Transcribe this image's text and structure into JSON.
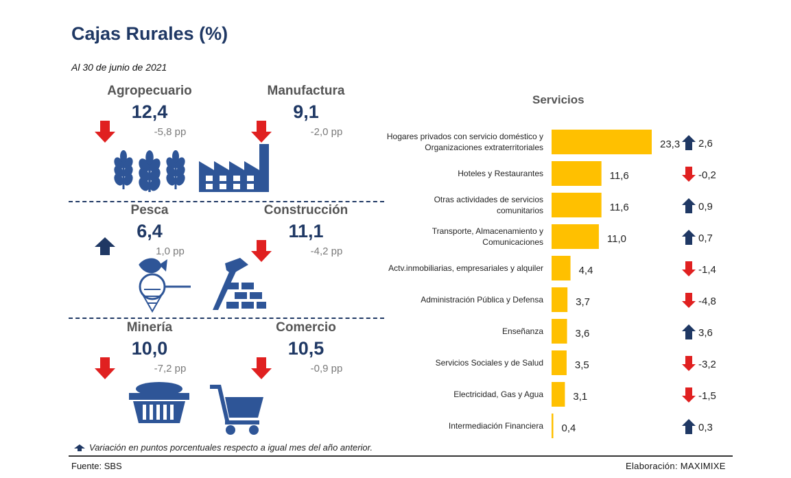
{
  "title": "Cajas Rurales (%)",
  "subtitle": "Al 30 de junio de 2021",
  "sectors": [
    {
      "name": "Agropecuario",
      "value": "12,4",
      "change": "-5,8 pp",
      "direction": "down",
      "icon": "wheat-icon"
    },
    {
      "name": "Manufactura",
      "value": "9,1",
      "change": "-2,0 pp",
      "direction": "down",
      "icon": "factory-icon"
    },
    {
      "name": "Pesca",
      "value": "6,4",
      "change": "1,0 pp",
      "direction": "up",
      "icon": "fishing-net-icon"
    },
    {
      "name": "Construcción",
      "value": "11,1",
      "change": "-4,2 pp",
      "direction": "down",
      "icon": "hammer-bricks-icon"
    },
    {
      "name": "Minería",
      "value": "10,0",
      "change": "-7,2 pp",
      "direction": "down",
      "icon": "mining-cart-icon"
    },
    {
      "name": "Comercio",
      "value": "10,5",
      "change": "-0,9 pp",
      "direction": "down",
      "icon": "shopping-cart-icon"
    }
  ],
  "note": "Variación en puntos porcentuales respecto a igual mes del año anterior.",
  "source": "Fuente: SBS",
  "credit": "Elaboración: MAXIMIXE",
  "colors": {
    "bar": "#FFC000",
    "title": "#1f3864",
    "up": "#1f3864",
    "down": "#e02020",
    "icon": "#2e5597"
  },
  "chart_data": {
    "type": "bar",
    "orientation": "horizontal",
    "title": "Servicios",
    "categories": [
      [
        "Hogares privados con servicio doméstico y",
        "Organizaciones extraterritoriales"
      ],
      [
        "Hoteles y Restaurantes"
      ],
      [
        "Otras actividades de servicios",
        "comunitarios"
      ],
      [
        "Transporte, Almacenamiento y",
        "Comunicaciones"
      ],
      [
        "Actv.inmobiliarias, empresariales y alquiler"
      ],
      [
        "Administración Pública y Defensa"
      ],
      [
        "Enseñanza"
      ],
      [
        "Servicios Sociales y de Salud"
      ],
      [
        "Electricidad, Gas y Agua"
      ],
      [
        "Intermediación Financiera"
      ]
    ],
    "values": [
      23.3,
      11.6,
      11.6,
      11.0,
      4.4,
      3.7,
      3.6,
      3.5,
      3.1,
      0.4
    ],
    "value_labels": [
      "23,3",
      "11,6",
      "11,6",
      "11,0",
      "4,4",
      "3,7",
      "3,6",
      "3,5",
      "3,1",
      "0,4"
    ],
    "changes": [
      2.6,
      -0.2,
      0.9,
      0.7,
      -1.4,
      -4.8,
      3.6,
      -3.2,
      -1.5,
      0.3
    ],
    "change_labels": [
      "2,6",
      "-0,2",
      "0,9",
      "0,7",
      "-1,4",
      "-4,8",
      "3,6",
      "-3,2",
      "-1,5",
      "0,3"
    ],
    "xlim": [
      0,
      23.3
    ],
    "grid": false
  }
}
